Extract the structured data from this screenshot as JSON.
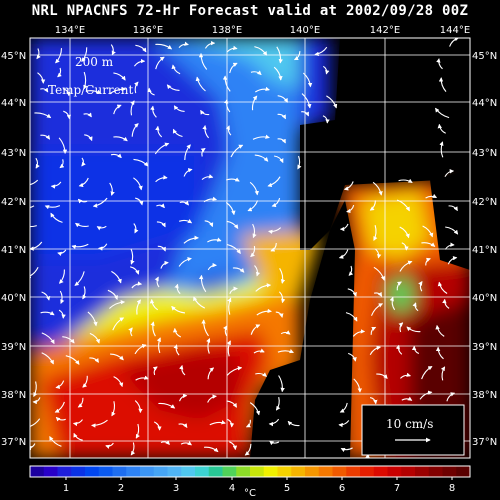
{
  "header": {
    "title": "NRL NPACNFS 72-Hr Forecast valid at 2002/09/28 00Z"
  },
  "map": {
    "depth_label": "200 m",
    "field_label": "Temp/Current",
    "lon_labels": [
      "134°E",
      "136°E",
      "138°E",
      "140°E",
      "142°E",
      "144°E"
    ],
    "lat_labels": [
      "45°N",
      "44°N",
      "43°N",
      "42°N",
      "41°N",
      "40°N",
      "39°N",
      "38°N",
      "37°N"
    ],
    "reference_vector_label": "10 cm/s",
    "land_color": "#000000",
    "vector_color": "#ffffff"
  },
  "colorbar": {
    "tick_labels": [
      "1",
      "2",
      "3",
      "4",
      "5",
      "6",
      "7",
      "8"
    ],
    "unit": "°C",
    "colors": [
      "#1c00a0",
      "#2800c8",
      "#1e1edc",
      "#0a32e6",
      "#0046f0",
      "#0a5af0",
      "#1e6ef0",
      "#2d82f5",
      "#3c96f5",
      "#46a5f5",
      "#50b4f5",
      "#50c8f0",
      "#3cd2d2",
      "#28c896",
      "#50d25a",
      "#8cdc28",
      "#c8e60a",
      "#f0f000",
      "#f5d200",
      "#f5b400",
      "#f59600",
      "#f57800",
      "#f05a00",
      "#eb3c00",
      "#e61e00",
      "#dc0a00",
      "#c80000",
      "#b40000",
      "#9b0000",
      "#820000",
      "#6e0000",
      "#5a0000"
    ]
  }
}
